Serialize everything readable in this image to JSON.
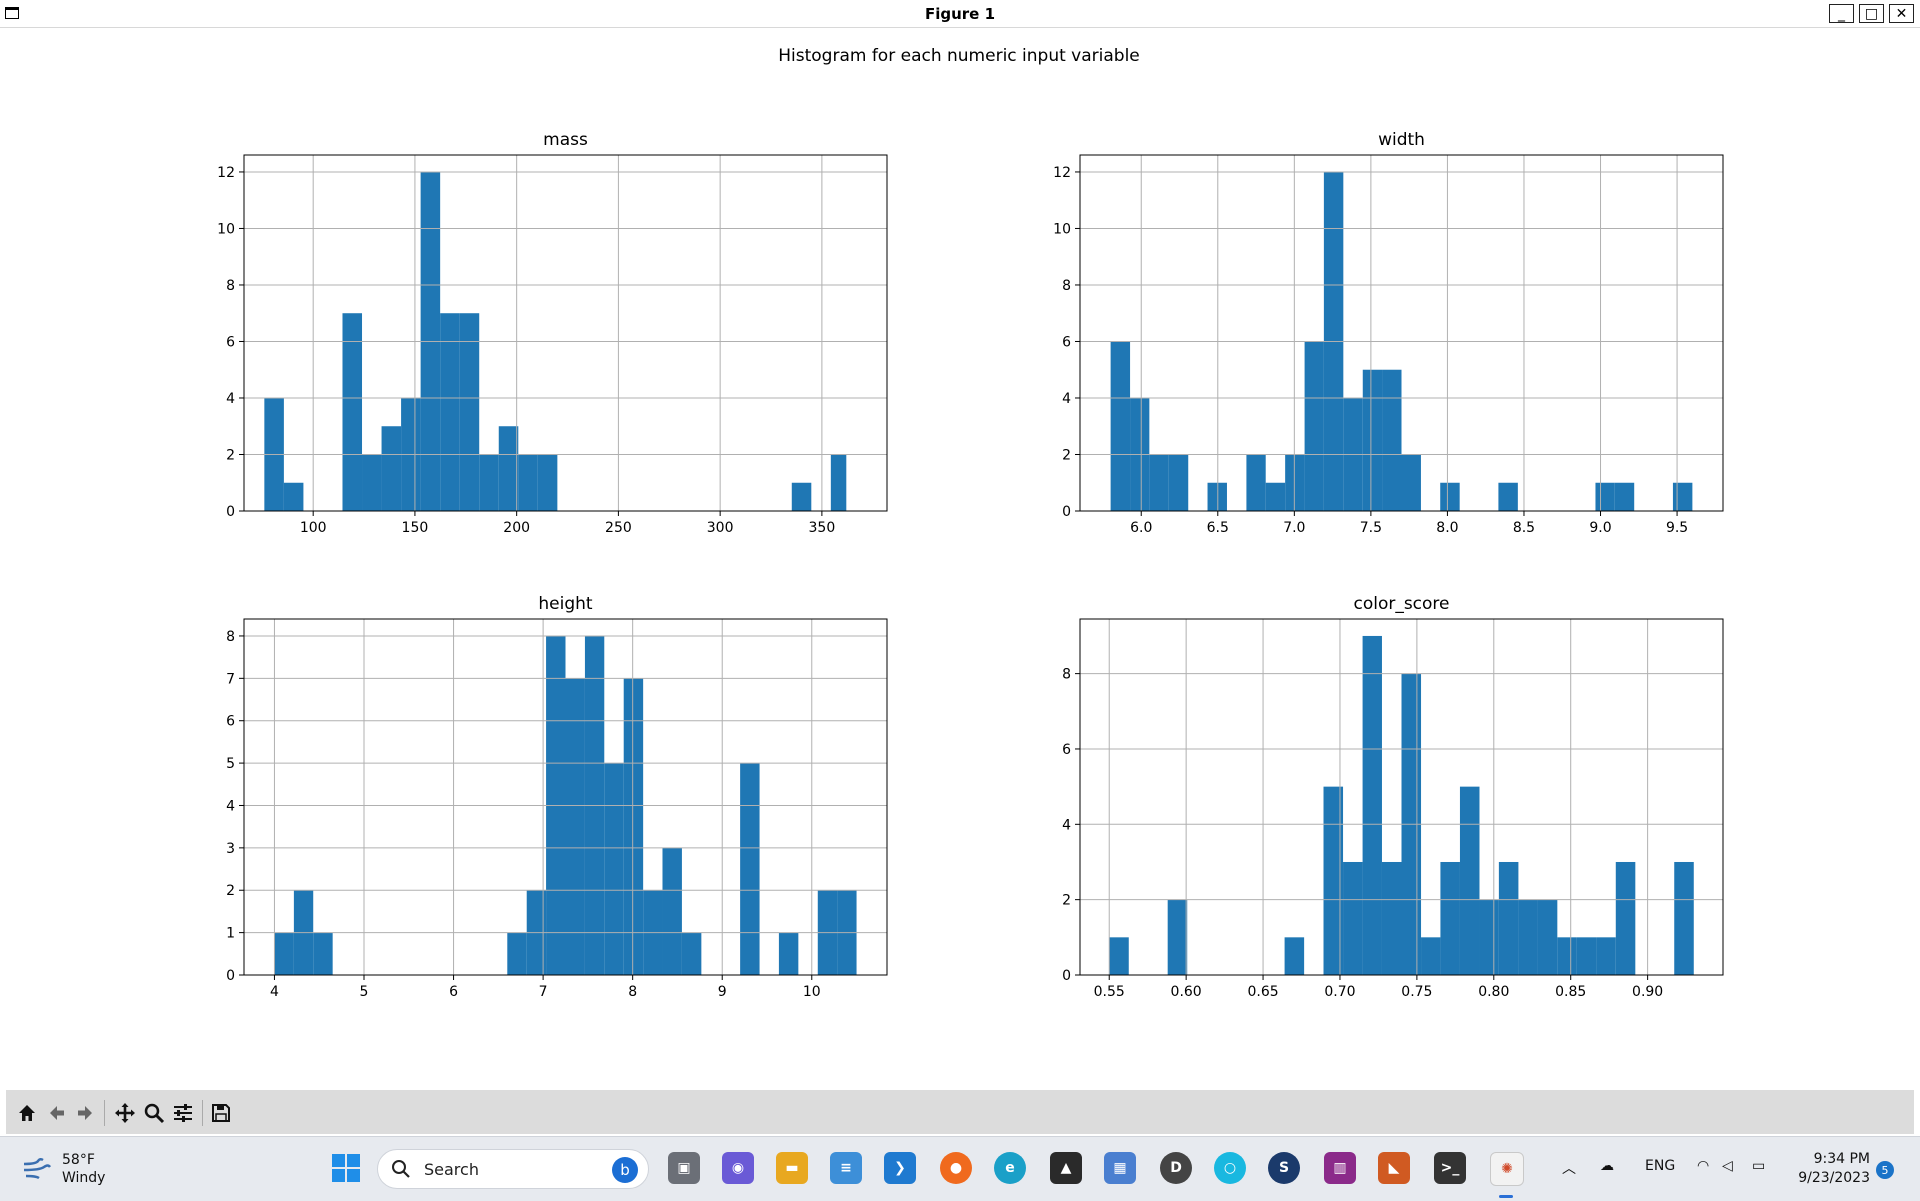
{
  "window": {
    "title": "Figure 1",
    "minimize": "_",
    "maximize": "□",
    "close": "✕"
  },
  "figure": {
    "suptitle": "Histogram for each numeric input variable"
  },
  "chart_data": [
    {
      "type": "bar",
      "title": "mass",
      "xlabel": "",
      "ylabel": "",
      "xlim": [
        66,
        382
      ],
      "ylim": [
        0,
        12.6
      ],
      "xticks": [
        100,
        150,
        200,
        250,
        300,
        350
      ],
      "xtick_labels": [
        "100",
        "150",
        "200",
        "250",
        "300",
        "350"
      ],
      "yticks": [
        0,
        2,
        4,
        6,
        8,
        10,
        12
      ],
      "ytick_labels": [
        "0",
        "2",
        "4",
        "6",
        "8",
        "10",
        "12"
      ],
      "bins": [
        76,
        85.6,
        95.2,
        104.8,
        114.4,
        124,
        133.6,
        143.2,
        152.8,
        162.4,
        172,
        181.6,
        191.2,
        200.8,
        210.4,
        220,
        229.6,
        239.2,
        248.8,
        258.4,
        268,
        277.6,
        287.2,
        296.8,
        306.4,
        316,
        325.6,
        335.2,
        344.8,
        354.4,
        362
      ],
      "counts": [
        4,
        1,
        0,
        0,
        7,
        2,
        3,
        4,
        12,
        7,
        7,
        2,
        3,
        2,
        2,
        0,
        0,
        0,
        0,
        0,
        0,
        0,
        0,
        0,
        0,
        0,
        0,
        1,
        0,
        2
      ],
      "grid": true,
      "color": "#1f77b4"
    },
    {
      "type": "bar",
      "title": "width",
      "xlabel": "",
      "ylabel": "",
      "xlim": [
        5.6,
        9.8
      ],
      "ylim": [
        0,
        12.6
      ],
      "xticks": [
        6.0,
        6.5,
        7.0,
        7.5,
        8.0,
        8.5,
        9.0,
        9.5
      ],
      "xtick_labels": [
        "6.0",
        "6.5",
        "7.0",
        "7.5",
        "8.0",
        "8.5",
        "9.0",
        "9.5"
      ],
      "yticks": [
        0,
        2,
        4,
        6,
        8,
        10,
        12
      ],
      "ytick_labels": [
        "0",
        "2",
        "4",
        "6",
        "8",
        "10",
        "12"
      ],
      "bins": [
        5.8,
        5.927,
        6.053,
        6.18,
        6.307,
        6.433,
        6.56,
        6.687,
        6.813,
        6.94,
        7.067,
        7.193,
        7.32,
        7.447,
        7.573,
        7.7,
        7.827,
        7.953,
        8.08,
        8.207,
        8.333,
        8.46,
        8.587,
        8.713,
        8.84,
        8.967,
        9.093,
        9.22,
        9.347,
        9.473,
        9.6
      ],
      "counts": [
        6,
        4,
        2,
        2,
        0,
        1,
        0,
        2,
        1,
        2,
        6,
        12,
        4,
        5,
        5,
        2,
        0,
        1,
        0,
        0,
        1,
        0,
        0,
        0,
        0,
        1,
        1,
        0,
        0,
        1
      ],
      "grid": true,
      "color": "#1f77b4"
    },
    {
      "type": "bar",
      "title": "height",
      "xlabel": "",
      "ylabel": "",
      "xlim": [
        3.66,
        10.84
      ],
      "ylim": [
        0,
        8.4
      ],
      "xticks": [
        4,
        5,
        6,
        7,
        8,
        9,
        10
      ],
      "xtick_labels": [
        "4",
        "5",
        "6",
        "7",
        "8",
        "9",
        "10"
      ],
      "yticks": [
        0,
        1,
        2,
        3,
        4,
        5,
        6,
        7,
        8
      ],
      "ytick_labels": [
        "0",
        "1",
        "2",
        "3",
        "4",
        "5",
        "6",
        "7",
        "8"
      ],
      "bins": [
        4.0,
        4.217,
        4.433,
        4.65,
        4.867,
        5.083,
        5.3,
        5.517,
        5.733,
        5.95,
        6.167,
        6.383,
        6.6,
        6.817,
        7.033,
        7.25,
        7.467,
        7.683,
        7.9,
        8.117,
        8.333,
        8.55,
        8.767,
        8.983,
        9.2,
        9.417,
        9.633,
        9.85,
        10.067,
        10.283,
        10.5
      ],
      "counts": [
        1,
        2,
        1,
        0,
        0,
        0,
        0,
        0,
        0,
        0,
        0,
        0,
        1,
        2,
        8,
        7,
        8,
        5,
        7,
        2,
        3,
        1,
        0,
        0,
        5,
        0,
        1,
        0,
        2,
        2
      ],
      "grid": true,
      "color": "#1f77b4"
    },
    {
      "type": "bar",
      "title": "color_score",
      "xlabel": "",
      "ylabel": "",
      "xlim": [
        0.531,
        0.949
      ],
      "ylim": [
        0,
        9.45
      ],
      "xticks": [
        0.55,
        0.6,
        0.65,
        0.7,
        0.75,
        0.8,
        0.85,
        0.9
      ],
      "xtick_labels": [
        "0.55",
        "0.60",
        "0.65",
        "0.70",
        "0.75",
        "0.80",
        "0.85",
        "0.90"
      ],
      "yticks": [
        0,
        2,
        4,
        6,
        8
      ],
      "ytick_labels": [
        "0",
        "2",
        "4",
        "6",
        "8"
      ],
      "bins": [
        0.55,
        0.5627,
        0.5753,
        0.588,
        0.6007,
        0.6133,
        0.626,
        0.6387,
        0.6513,
        0.664,
        0.6767,
        0.6893,
        0.702,
        0.7147,
        0.7273,
        0.74,
        0.7527,
        0.7653,
        0.778,
        0.7907,
        0.8033,
        0.816,
        0.8287,
        0.8413,
        0.854,
        0.8667,
        0.8793,
        0.892,
        0.9047,
        0.9173,
        0.93
      ],
      "counts": [
        1,
        0,
        0,
        2,
        0,
        0,
        0,
        0,
        0,
        1,
        0,
        5,
        3,
        9,
        3,
        8,
        1,
        3,
        5,
        2,
        3,
        2,
        2,
        1,
        1,
        1,
        3,
        0,
        0,
        3
      ],
      "grid": true,
      "color": "#1f77b4"
    }
  ],
  "toolbar": {
    "buttons": [
      {
        "name": "home-icon"
      },
      {
        "name": "back-arrow-icon"
      },
      {
        "name": "forward-arrow-icon"
      },
      {
        "name": "pan-icon"
      },
      {
        "name": "zoom-icon"
      },
      {
        "name": "configure-subplots-icon"
      },
      {
        "name": "save-icon"
      }
    ]
  },
  "taskbar": {
    "weather": {
      "temp": "58°F",
      "condition": "Windy"
    },
    "search": {
      "label": "Search"
    },
    "tray": {
      "language": "ENG"
    },
    "clock": {
      "time": "9:34 PM",
      "date": "9/23/2023"
    },
    "notifications": "5"
  }
}
